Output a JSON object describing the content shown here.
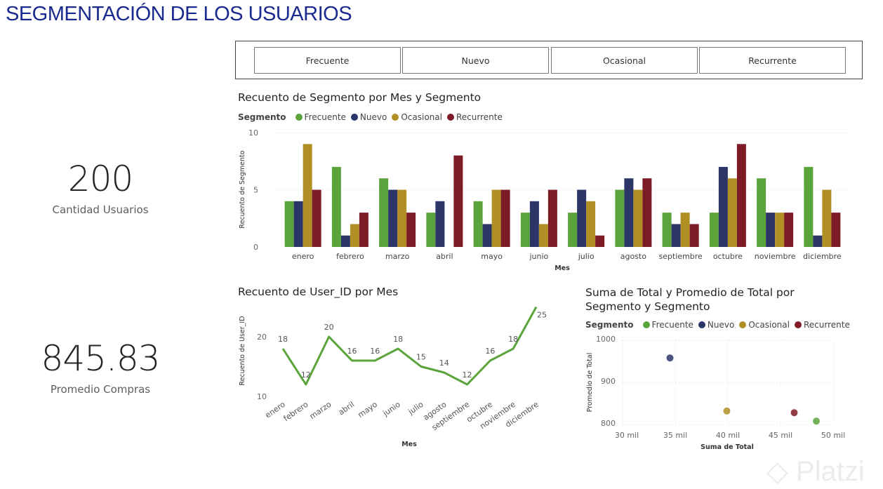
{
  "title": "SEGMENTACIÓN DE LOS USUARIOS",
  "kpis": [
    {
      "value": "200",
      "label": "Cantidad Usuarios"
    },
    {
      "value": "845.83",
      "label": "Promedio Compras"
    }
  ],
  "slicer": {
    "options": [
      "Frecuente",
      "Nuevo",
      "Ocasional",
      "Recurrente"
    ]
  },
  "colors": {
    "Frecuente": "#5aa43b",
    "Nuevo": "#2b3568",
    "Ocasional": "#b08f25",
    "Recurrente": "#7d1b26"
  },
  "legend_title": "Segmento",
  "watermark": "Platzi",
  "chart_data": [
    {
      "type": "bar",
      "title": "Recuento de Segmento por Mes y Segmento",
      "xlabel": "Mes",
      "ylabel": "Recuento de Segmento",
      "ylim": [
        0,
        10
      ],
      "yticks": [
        "0",
        "5",
        "10"
      ],
      "categories": [
        "enero",
        "febrero",
        "marzo",
        "abril",
        "mayo",
        "junio",
        "julio",
        "agosto",
        "septiembre",
        "octubre",
        "noviembre",
        "diciembre"
      ],
      "series": [
        {
          "name": "Frecuente",
          "values": [
            4,
            7,
            6,
            3,
            4,
            3,
            3,
            5,
            3,
            3,
            6,
            7
          ]
        },
        {
          "name": "Nuevo",
          "values": [
            4,
            1,
            5,
            4,
            2,
            4,
            5,
            6,
            2,
            7,
            3,
            1
          ]
        },
        {
          "name": "Ocasional",
          "values": [
            9,
            2,
            5,
            0,
            5,
            2,
            4,
            5,
            3,
            6,
            3,
            5
          ]
        },
        {
          "name": "Recurrente",
          "values": [
            5,
            3,
            3,
            8,
            5,
            5,
            1,
            6,
            2,
            9,
            3,
            3
          ]
        }
      ],
      "legend": "top-left"
    },
    {
      "type": "line",
      "title": "Recuento de User_ID por Mes",
      "xlabel": "Mes",
      "ylabel": "Recuento de User_ID",
      "yticks": [
        "10",
        "20"
      ],
      "categories": [
        "enero",
        "febrero",
        "marzo",
        "abril",
        "mayo",
        "junio",
        "julio",
        "agosto",
        "septiembre",
        "octubre",
        "noviembre",
        "diciembre"
      ],
      "values": [
        18,
        12,
        20,
        16,
        16,
        18,
        15,
        14,
        12,
        16,
        18,
        25
      ],
      "data_labels": [
        "18",
        "12",
        "20",
        "16",
        "16",
        "18",
        "15",
        "14",
        "12",
        "16",
        "18",
        "25"
      ]
    },
    {
      "type": "scatter",
      "title": "Suma de Total y Promedio de Total por Segmento y Segmento",
      "xlabel": "Suma de Total",
      "ylabel": "Promedio de Total",
      "xlim": [
        30000,
        50000
      ],
      "ylim": [
        800,
        1000
      ],
      "xticks": [
        "30 mil",
        "35 mil",
        "40 mil",
        "45 mil",
        "50 mil"
      ],
      "yticks": [
        "800",
        "900",
        "1000"
      ],
      "points": [
        {
          "name": "Nuevo",
          "x": 34500,
          "y": 958
        },
        {
          "name": "Ocasional",
          "x": 39900,
          "y": 832
        },
        {
          "name": "Recurrente",
          "x": 46300,
          "y": 828
        },
        {
          "name": "Frecuente",
          "x": 48400,
          "y": 808
        }
      ]
    }
  ]
}
